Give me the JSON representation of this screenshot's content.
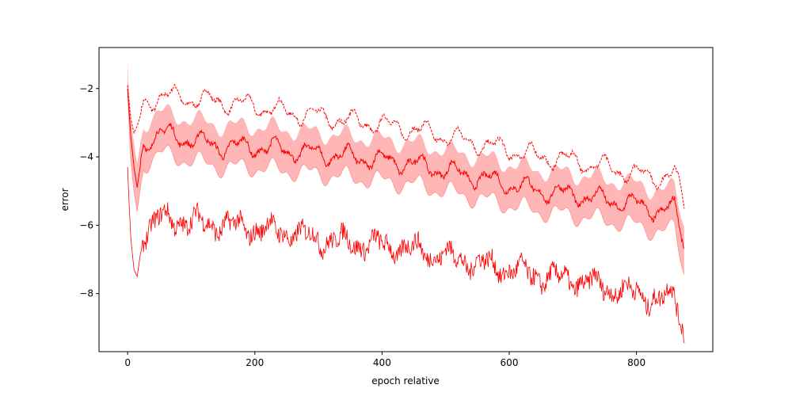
{
  "chart_data": {
    "type": "line",
    "title": "",
    "xlabel": "epoch relative",
    "ylabel": "error",
    "xlim": [
      -45,
      920
    ],
    "ylim": [
      -9.7,
      -0.8
    ],
    "xticks": [
      0,
      200,
      400,
      600,
      800
    ],
    "yticks": [
      -8,
      -6,
      -4,
      -2
    ],
    "grid": false,
    "legend": "none",
    "colors": {
      "line": "#ff0000",
      "band": "#ffb6b6",
      "band_edge": "#ff9999"
    },
    "series": [
      {
        "style": "dashed",
        "x": [
          0,
          2,
          5,
          10,
          15,
          25,
          50,
          100,
          150,
          200,
          250,
          300,
          350,
          400,
          450,
          500,
          550,
          600,
          650,
          700,
          750,
          800,
          840,
          860,
          875
        ],
        "values": [
          -1.9,
          -2.3,
          -2.9,
          -3.3,
          -3.1,
          -2.5,
          -2.2,
          -2.3,
          -2.4,
          -2.5,
          -2.7,
          -2.8,
          -2.95,
          -3.05,
          -3.2,
          -3.4,
          -3.6,
          -3.8,
          -4.0,
          -4.1,
          -4.3,
          -4.5,
          -4.6,
          -4.5,
          -5.4
        ]
      },
      {
        "style": "solid",
        "x": [
          0,
          2,
          5,
          10,
          15,
          25,
          50,
          100,
          150,
          200,
          250,
          300,
          350,
          400,
          450,
          500,
          550,
          600,
          650,
          700,
          750,
          800,
          840,
          860,
          875
        ],
        "values": [
          -2.0,
          -2.6,
          -3.4,
          -4.3,
          -4.9,
          -3.6,
          -3.3,
          -3.5,
          -3.7,
          -3.7,
          -3.8,
          -3.9,
          -4.0,
          -4.1,
          -4.2,
          -4.4,
          -4.6,
          -4.8,
          -5.0,
          -5.1,
          -5.25,
          -5.4,
          -5.6,
          -5.5,
          -6.5
        ]
      },
      {
        "style": "solid",
        "x": [
          0,
          2,
          5,
          10,
          15,
          25,
          50,
          100,
          150,
          200,
          250,
          300,
          350,
          400,
          450,
          500,
          550,
          600,
          650,
          700,
          750,
          800,
          840,
          860,
          875
        ],
        "values": [
          -4.3,
          -5.2,
          -6.4,
          -7.3,
          -7.5,
          -6.2,
          -5.8,
          -5.9,
          -6.0,
          -6.1,
          -6.2,
          -6.4,
          -6.5,
          -6.6,
          -6.7,
          -6.9,
          -7.1,
          -7.3,
          -7.5,
          -7.6,
          -7.8,
          -8.0,
          -8.2,
          -8.0,
          -9.1
        ]
      }
    ],
    "band": {
      "x": [
        0,
        2,
        5,
        10,
        15,
        25,
        50,
        100,
        150,
        200,
        250,
        300,
        350,
        400,
        450,
        500,
        550,
        600,
        650,
        700,
        750,
        800,
        840,
        860,
        875
      ],
      "lower": [
        -1.9,
        -2.9,
        -4.1,
        -5.0,
        -5.6,
        -4.2,
        -3.9,
        -4.1,
        -4.3,
        -4.3,
        -4.4,
        -4.5,
        -4.6,
        -4.7,
        -4.8,
        -5.0,
        -5.2,
        -5.4,
        -5.6,
        -5.7,
        -5.85,
        -6.0,
        -6.2,
        -6.1,
        -7.3
      ],
      "upper": [
        -1.1,
        -2.3,
        -2.9,
        -3.6,
        -4.2,
        -3.0,
        -2.7,
        -2.9,
        -3.1,
        -3.1,
        -3.2,
        -3.3,
        -3.4,
        -3.5,
        -3.6,
        -3.8,
        -4.0,
        -4.2,
        -4.4,
        -4.5,
        -4.65,
        -4.8,
        -5.0,
        -4.9,
        -5.9
      ]
    }
  }
}
